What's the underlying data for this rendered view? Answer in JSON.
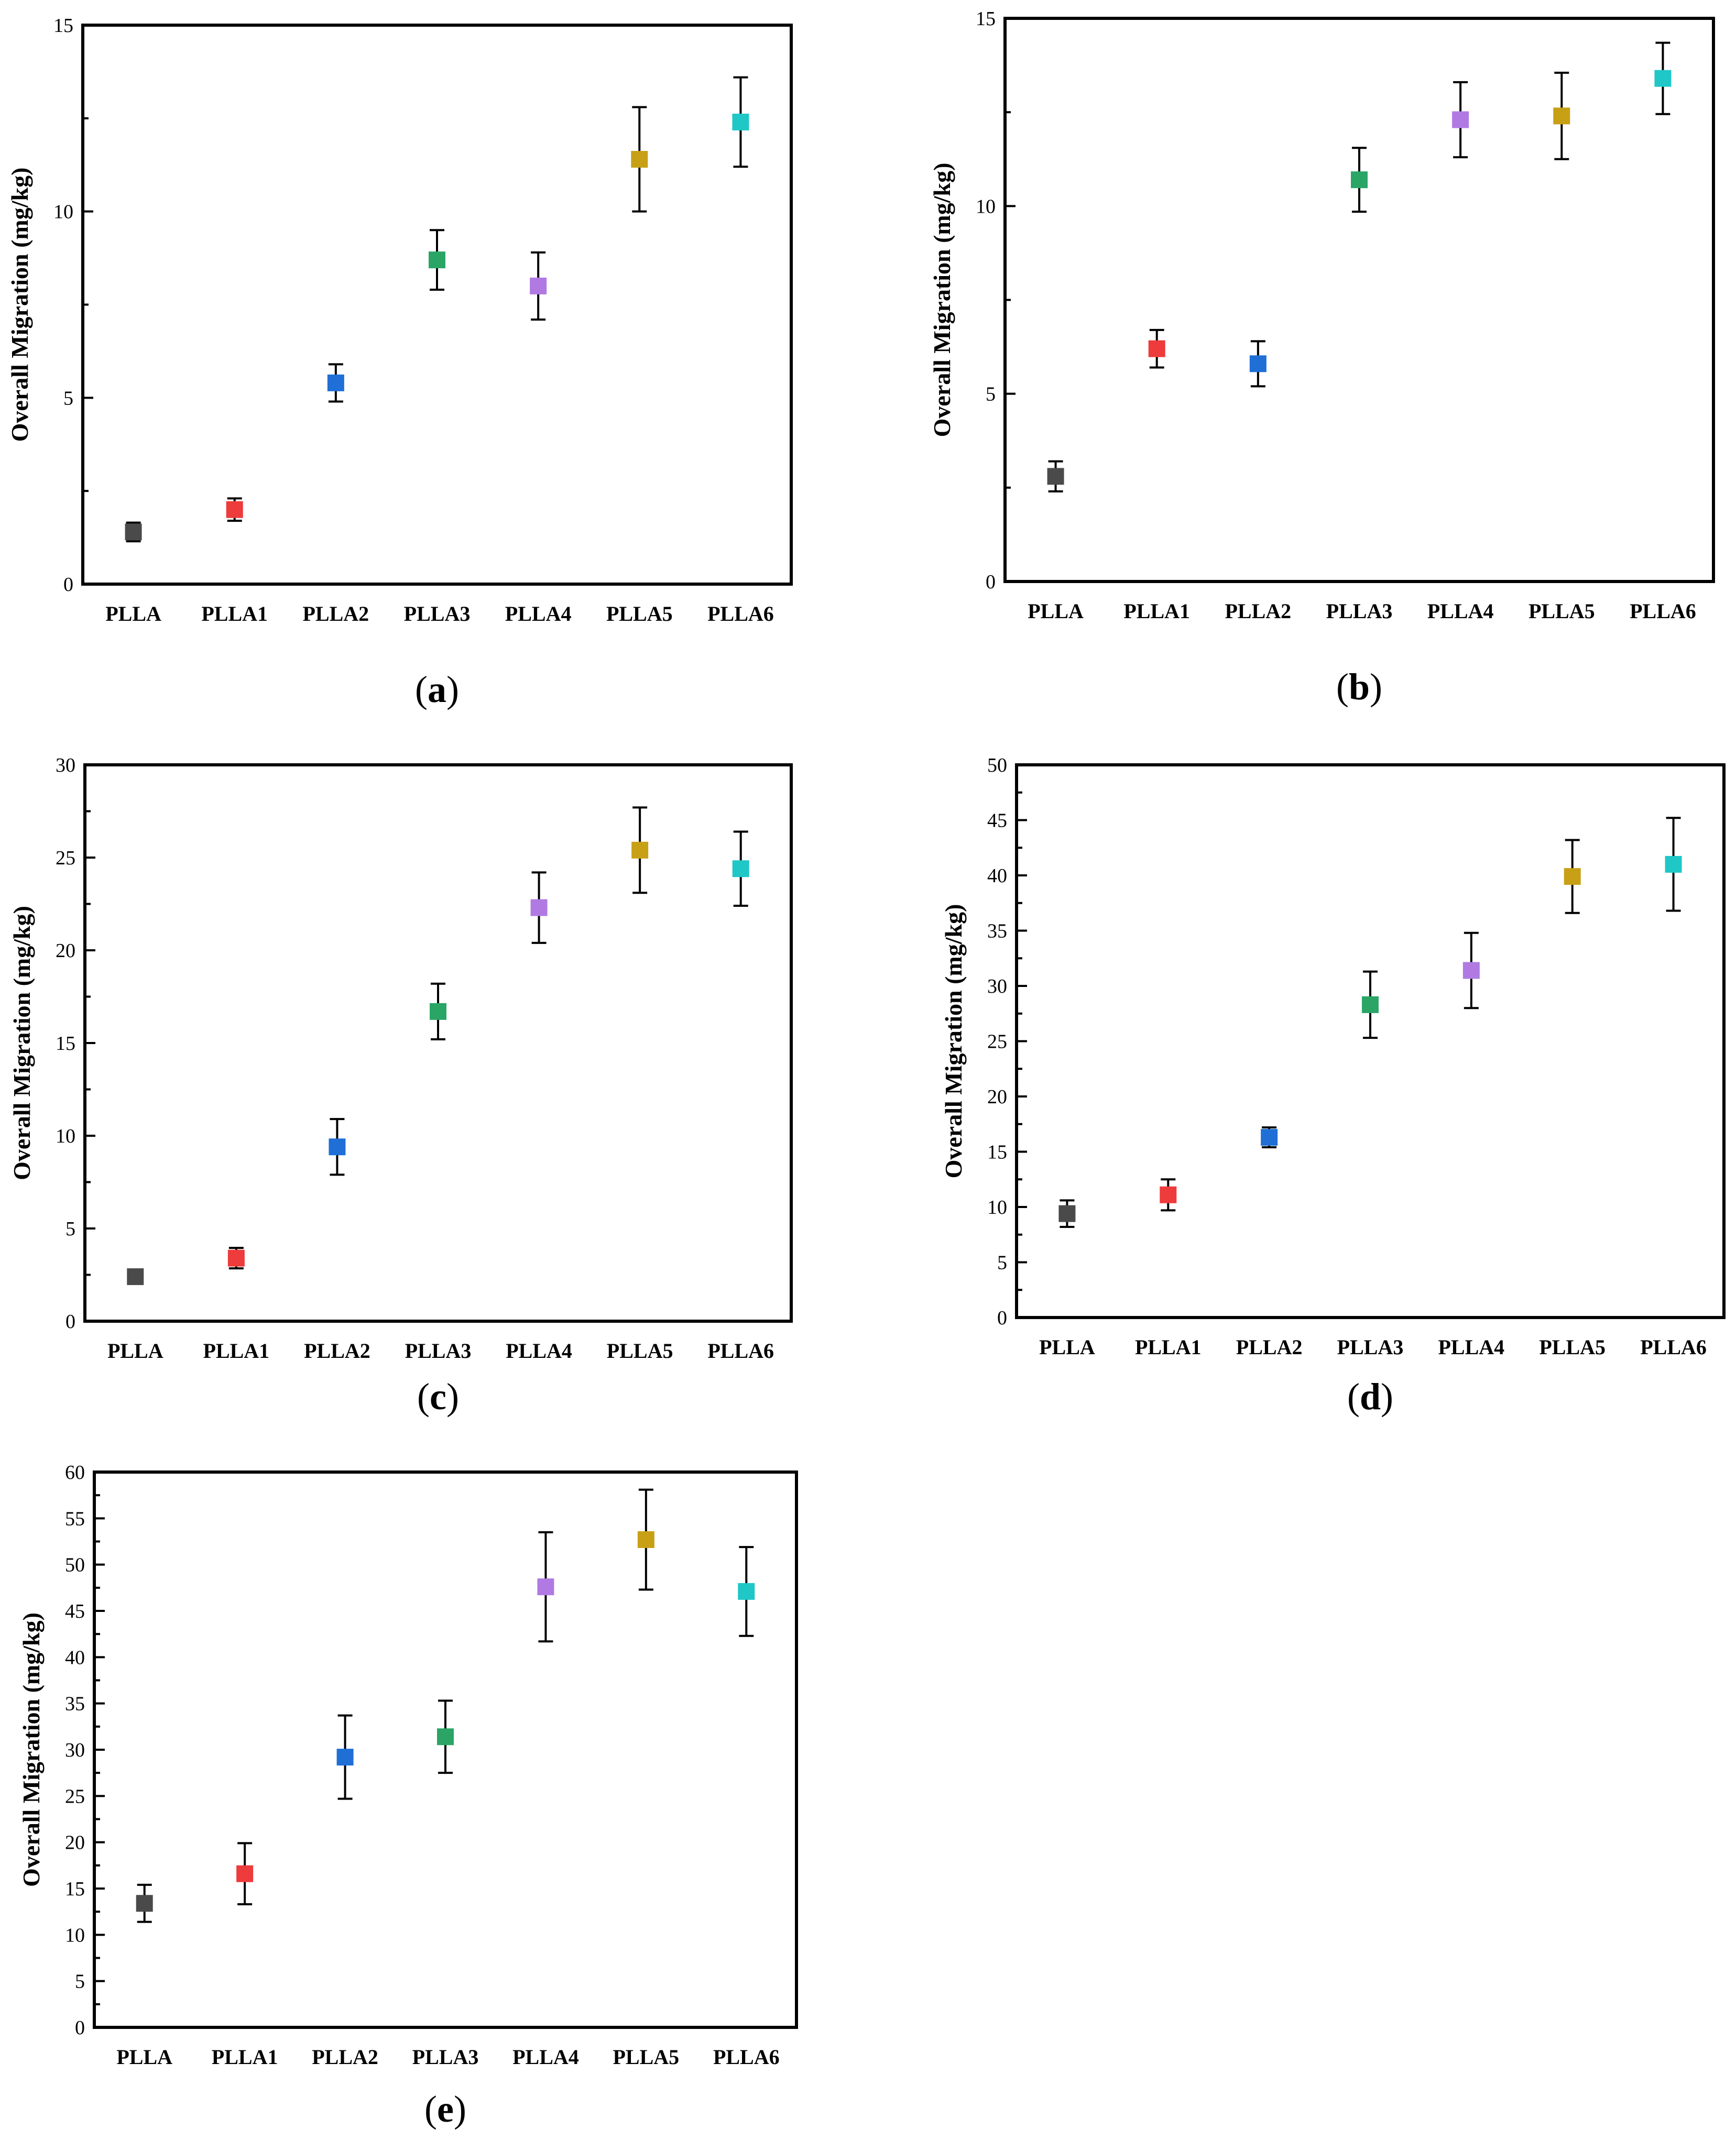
{
  "colors": {
    "PLLA": "#4a4a4a",
    "PLLA1": "#ee3b3b",
    "PLLA2": "#1f6fd6",
    "PLLA3": "#2aa566",
    "PLLA4": "#b07ae2",
    "PLLA5": "#c8a016",
    "PLLA6": "#1fc7c7"
  },
  "chart_data": [
    {
      "panel": "a",
      "type": "scatter",
      "ylabel": "Overall Migration (mg/kg)",
      "categories": [
        "PLLA",
        "PLLA1",
        "PLLA2",
        "PLLA3",
        "PLLA4",
        "PLLA5",
        "PLLA6"
      ],
      "values": [
        1.4,
        2.0,
        5.4,
        8.7,
        8.0,
        11.4,
        12.4
      ],
      "errors": [
        0.25,
        0.3,
        0.5,
        0.8,
        0.9,
        1.4,
        1.2
      ],
      "ylim": [
        0,
        15
      ],
      "ticks": [
        0,
        5,
        10,
        15
      ]
    },
    {
      "panel": "b",
      "type": "scatter",
      "ylabel": "Overall Migration (mg/kg)",
      "categories": [
        "PLLA",
        "PLLA1",
        "PLLA2",
        "PLLA3",
        "PLLA4",
        "PLLA5",
        "PLLA6"
      ],
      "values": [
        2.8,
        6.2,
        5.8,
        10.7,
        12.3,
        12.4,
        13.4
      ],
      "errors": [
        0.4,
        0.5,
        0.6,
        0.85,
        1.0,
        1.15,
        0.95
      ],
      "ylim": [
        0,
        15
      ],
      "ticks": [
        0,
        5,
        10,
        15
      ]
    },
    {
      "panel": "c",
      "type": "scatter",
      "ylabel": "Overall Migration (mg/kg)",
      "categories": [
        "PLLA",
        "PLLA1",
        "PLLA2",
        "PLLA3",
        "PLLA4",
        "PLLA5",
        "PLLA6"
      ],
      "values": [
        2.4,
        3.4,
        9.4,
        16.7,
        22.3,
        25.4,
        24.4
      ],
      "errors": [
        0.3,
        0.55,
        1.5,
        1.5,
        1.9,
        2.3,
        2.0
      ],
      "ylim": [
        0,
        30
      ],
      "ticks": [
        0,
        5,
        10,
        15,
        20,
        25,
        30
      ]
    },
    {
      "panel": "d",
      "type": "scatter",
      "ylabel": "Overall Migration (mg/kg)",
      "categories": [
        "PLLA",
        "PLLA1",
        "PLLA2",
        "PLLA3",
        "PLLA4",
        "PLLA5",
        "PLLA6"
      ],
      "values": [
        9.4,
        11.1,
        16.3,
        28.3,
        31.4,
        39.9,
        41.0
      ],
      "errors": [
        1.2,
        1.4,
        0.9,
        3.0,
        3.4,
        3.3,
        4.2
      ],
      "ylim": [
        0,
        50
      ],
      "ticks": [
        0,
        5,
        10,
        15,
        20,
        25,
        30,
        35,
        40,
        45,
        50
      ]
    },
    {
      "panel": "e",
      "type": "scatter",
      "ylabel": "Overall Migration (mg/kg)",
      "categories": [
        "PLLA",
        "PLLA1",
        "PLLA2",
        "PLLA3",
        "PLLA4",
        "PLLA5",
        "PLLA6"
      ],
      "values": [
        13.4,
        16.6,
        29.2,
        31.4,
        47.6,
        52.7,
        47.1
      ],
      "errors": [
        2.0,
        3.3,
        4.5,
        3.9,
        5.9,
        5.4,
        4.8
      ],
      "ylim": [
        0,
        60
      ],
      "ticks": [
        0,
        5,
        10,
        15,
        20,
        25,
        30,
        35,
        40,
        45,
        50,
        55,
        60
      ]
    }
  ]
}
